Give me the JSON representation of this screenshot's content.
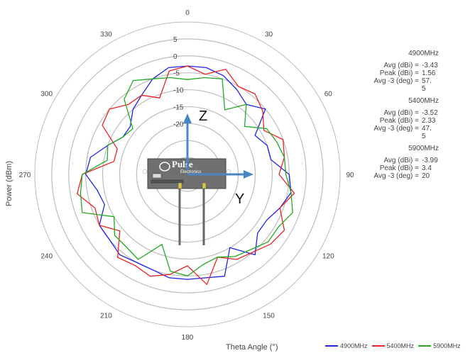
{
  "chart_data": {
    "type": "polar-line",
    "title": "",
    "ylabel": "Power (dBm)",
    "xlabel": "Theta Angle (°)",
    "angle_ticks": [
      "0",
      "30",
      "60",
      "90",
      "120",
      "150",
      "180",
      "210",
      "240",
      "270",
      "300",
      "330"
    ],
    "radial_ticks": [
      "5",
      "0",
      "-5",
      "-10",
      "-15",
      "-20"
    ],
    "radial_range": [
      -35,
      10
    ],
    "grid": true,
    "legend_position": "bottom-right",
    "axis_labels": {
      "z": "Z",
      "y": "Y"
    },
    "inset_image": "pulse-antenna-board",
    "theta": [
      0,
      10,
      20,
      30,
      40,
      50,
      60,
      70,
      80,
      90,
      100,
      110,
      120,
      130,
      140,
      150,
      160,
      170,
      180,
      190,
      200,
      210,
      220,
      230,
      240,
      250,
      260,
      270,
      280,
      290,
      300,
      310,
      320,
      330,
      340,
      350
    ],
    "series": [
      {
        "name": "4900MHz",
        "color": "#2222ee",
        "values": [
          -3,
          -3,
          -4,
          -6,
          -8,
          -5,
          -12,
          -10,
          -10,
          -5,
          -4,
          -6,
          -8,
          -8,
          -4,
          -10,
          -3,
          -4,
          -4,
          -4,
          -5,
          -5,
          -4,
          -5,
          -5,
          -9,
          -8,
          -5,
          -6,
          -10,
          -13,
          -13,
          -10,
          -8,
          -5,
          -3
        ]
      },
      {
        "name": "5400MHz",
        "color": "#ee2222",
        "values": [
          -3,
          -5,
          -2,
          -5,
          -4,
          -6,
          -9,
          -5,
          -6,
          -8,
          -3,
          -6,
          -2,
          -3,
          -5,
          -6,
          -9,
          -2,
          -8,
          -5,
          -3,
          -4,
          -3,
          -9,
          -5,
          -6,
          -2,
          -4,
          -13,
          -13,
          -6,
          -5,
          -8,
          -8,
          -11,
          -4
        ]
      },
      {
        "name": "5900MHz",
        "color": "#22aa22",
        "values": [
          -7,
          -6,
          -5,
          -13,
          -8,
          -13,
          -8,
          -7,
          -6,
          -6,
          -4,
          -2,
          -4,
          -4,
          -6,
          -7,
          -9,
          -8,
          -5,
          -6,
          -13,
          -6,
          -7,
          -7,
          -10,
          -2,
          -3,
          -4,
          -11,
          -10,
          -13,
          -14,
          -6,
          -3,
          -5,
          -6
        ]
      }
    ],
    "stats": [
      {
        "freq": "4900MHz",
        "avg_label": "Avg (dBi) =",
        "avg": "-3.43",
        "peak_label": "Peak (dBi) =",
        "peak": "1.56",
        "beam_label": "Avg -3 (deg) =",
        "beam": "57.",
        "beam_cont": "5"
      },
      {
        "freq": "5400MHz",
        "avg_label": "Avg (dBi) =",
        "avg": "-3.52",
        "peak_label": "Peak (dBi) =",
        "peak": "2.33",
        "beam_label": "Avg -3 (deg) =",
        "beam": "47.",
        "beam_cont": "5"
      },
      {
        "freq": "5900MHz",
        "avg_label": "Avg (dBi) =",
        "avg": "-3.99",
        "peak_label": "Peak (dBi) =",
        "peak": "3.4",
        "beam_label": "Avg -3 (deg) =",
        "beam": "20",
        "beam_cont": ""
      }
    ],
    "board_text": {
      "brand": "Pulse",
      "sub": "Electronics"
    }
  }
}
